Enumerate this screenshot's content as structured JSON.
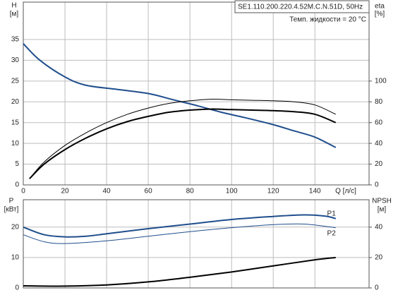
{
  "chart_data": [
    {
      "type": "line",
      "annotations": [
        "SE1.110.200.220.4.52M.C.N.51D, 50Hz",
        "Темп. жидкости = 20 °C"
      ],
      "ylabel": [
        "H",
        "[м]"
      ],
      "y2label": [
        "eta",
        "[%]"
      ],
      "xlabel": "Q [л/с]",
      "xlim": [
        0,
        166
      ],
      "xticks": [
        0,
        20,
        40,
        60,
        80,
        100,
        120,
        140
      ],
      "ylim": [
        0,
        44
      ],
      "yticks": [
        0,
        5,
        10,
        15,
        20,
        25,
        30,
        35
      ],
      "y2lim": [
        0,
        176
      ],
      "y2ticks": [
        0,
        20,
        40,
        60,
        80,
        100
      ],
      "grid": true,
      "series": [
        {
          "color": "#1f4e8c",
          "linewidth": 2,
          "x": [
            0,
            8,
            20,
            30,
            45,
            60,
            72,
            84,
            95,
            108,
            120,
            130,
            140,
            150
          ],
          "values": [
            34,
            30,
            26,
            24,
            23,
            22,
            20.5,
            19,
            17.5,
            16,
            14.5,
            13,
            11.5,
            9
          ]
        },
        {
          "color": "#000000",
          "linewidth": 1,
          "axis": "y2",
          "x": [
            3,
            10,
            20,
            30,
            40,
            50,
            60,
            70,
            80,
            90,
            100,
            110,
            120,
            130,
            140,
            150
          ],
          "values": [
            6,
            22,
            38,
            50,
            60,
            68,
            74,
            78.5,
            81,
            82.5,
            82,
            81.5,
            81,
            80,
            77,
            68
          ]
        },
        {
          "color": "#000000",
          "linewidth": 2,
          "axis": "y2",
          "x": [
            3,
            10,
            20,
            30,
            40,
            50,
            60,
            70,
            80,
            90,
            100,
            110,
            120,
            130,
            140,
            150
          ],
          "values": [
            6,
            20,
            34,
            45,
            54,
            61,
            66,
            70,
            72,
            73,
            72.5,
            72,
            71.5,
            70.5,
            68,
            60
          ]
        }
      ]
    },
    {
      "type": "line",
      "ylabel": [
        "P",
        "[кВт]"
      ],
      "y2label": [
        "NPSH",
        "[м]"
      ],
      "xlim": [
        0,
        166
      ],
      "xticks": [
        0,
        20,
        40,
        60,
        80,
        100,
        120,
        140
      ],
      "ylim": [
        0,
        29
      ],
      "yticks": [
        0,
        10,
        20
      ],
      "y2lim": [
        0,
        58
      ],
      "y2ticks": [
        0,
        20,
        40
      ],
      "grid": true,
      "series": [
        {
          "name": "P1",
          "color": "#1f4e8c",
          "linewidth": 2,
          "x": [
            0,
            10,
            20,
            30,
            40,
            60,
            80,
            100,
            120,
            135,
            145,
            150
          ],
          "values": [
            20,
            17.5,
            16.8,
            17,
            17.8,
            19.5,
            21,
            22.5,
            23.5,
            24,
            23.6,
            22.8
          ]
        },
        {
          "name": "P2",
          "color": "#1f4e8c",
          "linewidth": 1,
          "x": [
            0,
            10,
            20,
            40,
            60,
            80,
            100,
            120,
            135,
            150
          ],
          "values": [
            17.5,
            15.2,
            14.6,
            15.5,
            17,
            18.5,
            19.8,
            20.8,
            21,
            19.8
          ]
        },
        {
          "color": "#000000",
          "linewidth": 2,
          "axis": "y2",
          "x": [
            0,
            20,
            40,
            60,
            80,
            100,
            120,
            140,
            150
          ],
          "values": [
            1.4,
            1.2,
            2,
            4,
            7,
            10.5,
            14.5,
            18.5,
            20
          ]
        }
      ]
    }
  ]
}
